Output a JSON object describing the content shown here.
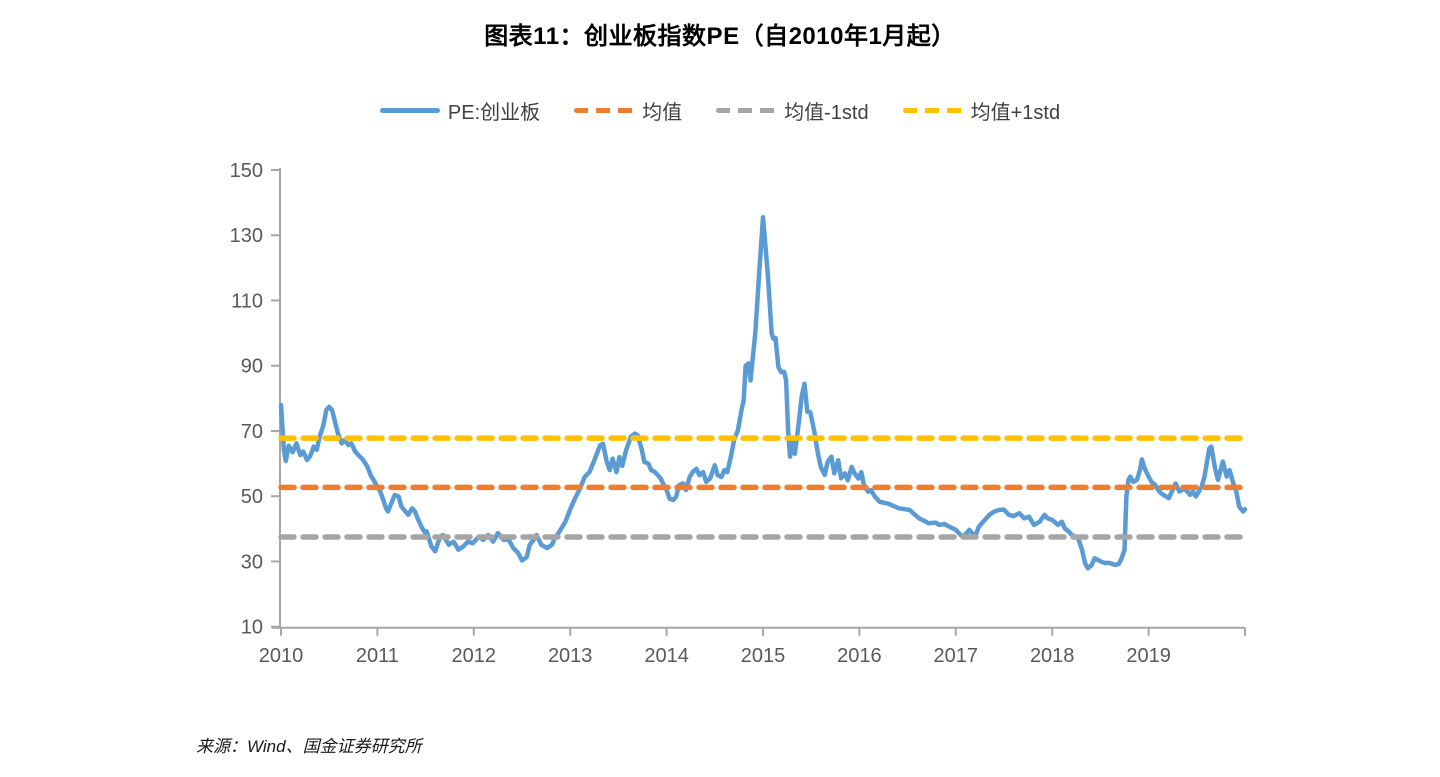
{
  "header": {
    "title": "图表11：创业板指数PE（自2010年1月起）"
  },
  "source": {
    "text": "来源：Wind、国金证券研究所"
  },
  "colors": {
    "pe_blue": "#5B9BD5",
    "mean_orange": "#ED7D31",
    "minus_std_gray": "#A5A5A5",
    "plus_std_yellow": "#FFC000",
    "axis_gray": "#A6A6A6",
    "tick_label_gray": "#595959"
  },
  "chart_data": {
    "type": "line",
    "title": "图表11：创业板指数PE（自2010年1月起）",
    "xlabel": "",
    "ylabel": "",
    "x_ticks": [
      2010,
      2011,
      2012,
      2013,
      2014,
      2015,
      2016,
      2017,
      2018,
      2019
    ],
    "y_ticks": [
      10,
      30,
      50,
      70,
      90,
      110,
      130,
      150
    ],
    "x_range": [
      2010,
      2020
    ],
    "y_range": [
      10,
      150
    ],
    "grid": false,
    "legend_position": "top",
    "series": [
      {
        "name": "PE:创业板",
        "type": "line",
        "style": "solid",
        "color": "#5B9BD5",
        "points": [
          [
            2010.0,
            78
          ],
          [
            2010.03,
            64
          ],
          [
            2010.05,
            60.8
          ],
          [
            2010.08,
            65.5
          ],
          [
            2010.12,
            63.5
          ],
          [
            2010.16,
            66.2
          ],
          [
            2010.2,
            62.6
          ],
          [
            2010.23,
            63.7
          ],
          [
            2010.27,
            61.1
          ],
          [
            2010.3,
            62.1
          ],
          [
            2010.34,
            65.2
          ],
          [
            2010.37,
            64.2
          ],
          [
            2010.4,
            68.2
          ],
          [
            2010.44,
            71.8
          ],
          [
            2010.47,
            76.4
          ],
          [
            2010.5,
            77.4
          ],
          [
            2010.53,
            76.4
          ],
          [
            2010.56,
            72.8
          ],
          [
            2010.59,
            69.3
          ],
          [
            2010.63,
            66.2
          ],
          [
            2010.66,
            67.2
          ],
          [
            2010.7,
            65.7
          ],
          [
            2010.73,
            66.2
          ],
          [
            2010.77,
            63.7
          ],
          [
            2010.8,
            62.7
          ],
          [
            2010.84,
            61.5
          ],
          [
            2010.87,
            60.3
          ],
          [
            2010.9,
            58.8
          ],
          [
            2010.93,
            56.4
          ],
          [
            2010.96,
            55.0
          ],
          [
            2010.99,
            53.4
          ],
          [
            2011.03,
            51.4
          ],
          [
            2011.06,
            48.9
          ],
          [
            2011.09,
            46.3
          ],
          [
            2011.11,
            45.3
          ],
          [
            2011.15,
            48.3
          ],
          [
            2011.18,
            50.4
          ],
          [
            2011.22,
            49.9
          ],
          [
            2011.25,
            46.8
          ],
          [
            2011.29,
            45.3
          ],
          [
            2011.32,
            44.3
          ],
          [
            2011.36,
            46.3
          ],
          [
            2011.39,
            45.3
          ],
          [
            2011.42,
            43.0
          ],
          [
            2011.46,
            40.5
          ],
          [
            2011.49,
            39.0
          ],
          [
            2011.51,
            39.2
          ],
          [
            2011.56,
            34.6
          ],
          [
            2011.6,
            33.1
          ],
          [
            2011.65,
            37.6
          ],
          [
            2011.68,
            38.1
          ],
          [
            2011.74,
            35.1
          ],
          [
            2011.79,
            36.1
          ],
          [
            2011.84,
            33.6
          ],
          [
            2011.89,
            34.6
          ],
          [
            2011.94,
            36.1
          ],
          [
            2011.99,
            35.6
          ],
          [
            2012.05,
            37.6
          ],
          [
            2012.1,
            36.6
          ],
          [
            2012.15,
            38.1
          ],
          [
            2012.2,
            36.1
          ],
          [
            2012.25,
            38.7
          ],
          [
            2012.31,
            36.6
          ],
          [
            2012.36,
            36.8
          ],
          [
            2012.41,
            34.1
          ],
          [
            2012.46,
            32.6
          ],
          [
            2012.5,
            30.3
          ],
          [
            2012.55,
            31.4
          ],
          [
            2012.58,
            35.1
          ],
          [
            2012.62,
            36.6
          ],
          [
            2012.65,
            38.1
          ],
          [
            2012.7,
            35.1
          ],
          [
            2012.76,
            34.1
          ],
          [
            2012.81,
            35.1
          ],
          [
            2012.84,
            37.1
          ],
          [
            2012.89,
            39.2
          ],
          [
            2012.95,
            42.2
          ],
          [
            2013.0,
            46.0
          ],
          [
            2013.05,
            49.3
          ],
          [
            2013.1,
            52.2
          ],
          [
            2013.15,
            55.9
          ],
          [
            2013.2,
            57.4
          ],
          [
            2013.25,
            61.0
          ],
          [
            2013.31,
            65.6
          ],
          [
            2013.34,
            66.1
          ],
          [
            2013.38,
            60.5
          ],
          [
            2013.41,
            58.0
          ],
          [
            2013.44,
            61.5
          ],
          [
            2013.48,
            57.4
          ],
          [
            2013.51,
            62.0
          ],
          [
            2013.54,
            59.3
          ],
          [
            2013.58,
            64.1
          ],
          [
            2013.63,
            68.2
          ],
          [
            2013.67,
            69.2
          ],
          [
            2013.7,
            68.7
          ],
          [
            2013.74,
            64.6
          ],
          [
            2013.77,
            60.5
          ],
          [
            2013.81,
            60.0
          ],
          [
            2013.84,
            58.0
          ],
          [
            2013.88,
            57.4
          ],
          [
            2013.91,
            56.4
          ],
          [
            2013.94,
            55.4
          ],
          [
            2013.98,
            52.9
          ],
          [
            2014.0,
            51.9
          ],
          [
            2014.03,
            49.3
          ],
          [
            2014.07,
            48.8
          ],
          [
            2014.1,
            49.9
          ],
          [
            2014.13,
            53.4
          ],
          [
            2014.17,
            53.9
          ],
          [
            2014.2,
            51.9
          ],
          [
            2014.24,
            55.9
          ],
          [
            2014.27,
            57.4
          ],
          [
            2014.31,
            58.4
          ],
          [
            2014.34,
            56.4
          ],
          [
            2014.38,
            57.4
          ],
          [
            2014.41,
            54.4
          ],
          [
            2014.45,
            55.4
          ],
          [
            2014.5,
            59.5
          ],
          [
            2014.53,
            56.4
          ],
          [
            2014.57,
            55.9
          ],
          [
            2014.6,
            58.0
          ],
          [
            2014.63,
            57.4
          ],
          [
            2014.67,
            62.6
          ],
          [
            2014.7,
            67.2
          ],
          [
            2014.74,
            70.2
          ],
          [
            2014.78,
            76.9
          ],
          [
            2014.8,
            79.4
          ],
          [
            2014.82,
            90.0
          ],
          [
            2014.85,
            90.7
          ],
          [
            2014.87,
            85.5
          ],
          [
            2014.92,
            100.0
          ],
          [
            2014.96,
            118.0
          ],
          [
            2015.0,
            135.5
          ],
          [
            2015.03,
            125.0
          ],
          [
            2015.05,
            118.1
          ],
          [
            2015.09,
            99.8
          ],
          [
            2015.11,
            98.2
          ],
          [
            2015.13,
            98.5
          ],
          [
            2015.16,
            89.6
          ],
          [
            2015.19,
            88.0
          ],
          [
            2015.22,
            88.1
          ],
          [
            2015.24,
            85.5
          ],
          [
            2015.26,
            70.2
          ],
          [
            2015.28,
            62.1
          ],
          [
            2015.31,
            66.7
          ],
          [
            2015.33,
            63.0
          ],
          [
            2015.37,
            72.3
          ],
          [
            2015.4,
            80.4
          ],
          [
            2015.43,
            84.5
          ],
          [
            2015.46,
            75.9
          ],
          [
            2015.49,
            75.8
          ],
          [
            2015.53,
            70.2
          ],
          [
            2015.57,
            63.1
          ],
          [
            2015.6,
            59.0
          ],
          [
            2015.64,
            56.5
          ],
          [
            2015.67,
            60.5
          ],
          [
            2015.71,
            62.1
          ],
          [
            2015.74,
            57.0
          ],
          [
            2015.78,
            61.0
          ],
          [
            2015.81,
            55.5
          ],
          [
            2015.85,
            57.0
          ],
          [
            2015.88,
            54.9
          ],
          [
            2015.92,
            59.0
          ],
          [
            2015.95,
            57.0
          ],
          [
            2015.99,
            55.4
          ],
          [
            2016.02,
            57.4
          ],
          [
            2016.05,
            53.0
          ],
          [
            2016.09,
            51.4
          ],
          [
            2016.12,
            51.9
          ],
          [
            2016.16,
            49.9
          ],
          [
            2016.21,
            48.3
          ],
          [
            2016.3,
            47.7
          ],
          [
            2016.41,
            46.3
          ],
          [
            2016.52,
            45.8
          ],
          [
            2016.62,
            43.2
          ],
          [
            2016.72,
            41.7
          ],
          [
            2016.79,
            41.9
          ],
          [
            2016.83,
            41.2
          ],
          [
            2016.88,
            41.5
          ],
          [
            2016.93,
            40.7
          ],
          [
            2017.0,
            39.7
          ],
          [
            2017.05,
            38.1
          ],
          [
            2017.08,
            37.6
          ],
          [
            2017.14,
            39.7
          ],
          [
            2017.2,
            37.6
          ],
          [
            2017.24,
            40.7
          ],
          [
            2017.3,
            42.7
          ],
          [
            2017.35,
            44.3
          ],
          [
            2017.4,
            45.3
          ],
          [
            2017.45,
            45.8
          ],
          [
            2017.5,
            45.9
          ],
          [
            2017.55,
            44.3
          ],
          [
            2017.6,
            43.9
          ],
          [
            2017.66,
            44.8
          ],
          [
            2017.71,
            43.2
          ],
          [
            2017.76,
            43.7
          ],
          [
            2017.81,
            41.2
          ],
          [
            2017.87,
            42.2
          ],
          [
            2017.92,
            44.3
          ],
          [
            2017.95,
            43.3
          ],
          [
            2018.0,
            42.7
          ],
          [
            2018.06,
            41.2
          ],
          [
            2018.1,
            42.2
          ],
          [
            2018.13,
            40.2
          ],
          [
            2018.17,
            39.2
          ],
          [
            2018.2,
            38.2
          ],
          [
            2018.24,
            37.6
          ],
          [
            2018.27,
            37.1
          ],
          [
            2018.31,
            33.5
          ],
          [
            2018.34,
            29.5
          ],
          [
            2018.37,
            27.9
          ],
          [
            2018.41,
            28.9
          ],
          [
            2018.44,
            31.0
          ],
          [
            2018.48,
            30.4
          ],
          [
            2018.51,
            29.9
          ],
          [
            2018.55,
            29.5
          ],
          [
            2018.58,
            29.6
          ],
          [
            2018.62,
            29.3
          ],
          [
            2018.65,
            28.9
          ],
          [
            2018.69,
            29.2
          ],
          [
            2018.72,
            31.0
          ],
          [
            2018.75,
            33.5
          ],
          [
            2018.77,
            50.0
          ],
          [
            2018.79,
            55.0
          ],
          [
            2018.81,
            56.0
          ],
          [
            2018.84,
            54.4
          ],
          [
            2018.88,
            55.0
          ],
          [
            2018.91,
            58.0
          ],
          [
            2018.93,
            61.3
          ],
          [
            2018.96,
            58.5
          ],
          [
            2019.0,
            56.0
          ],
          [
            2019.03,
            54.4
          ],
          [
            2019.07,
            53.4
          ],
          [
            2019.1,
            51.9
          ],
          [
            2019.13,
            50.9
          ],
          [
            2019.16,
            50.3
          ],
          [
            2019.21,
            49.4
          ],
          [
            2019.25,
            52.0
          ],
          [
            2019.28,
            53.9
          ],
          [
            2019.32,
            51.4
          ],
          [
            2019.37,
            52.4
          ],
          [
            2019.43,
            50.4
          ],
          [
            2019.46,
            51.4
          ],
          [
            2019.49,
            49.9
          ],
          [
            2019.55,
            52.9
          ],
          [
            2019.58,
            56.0
          ],
          [
            2019.63,
            64.7
          ],
          [
            2019.65,
            65.2
          ],
          [
            2019.69,
            58.5
          ],
          [
            2019.72,
            55.0
          ],
          [
            2019.77,
            60.6
          ],
          [
            2019.81,
            56.0
          ],
          [
            2019.84,
            58.0
          ],
          [
            2019.88,
            53.9
          ],
          [
            2019.91,
            51.4
          ],
          [
            2019.94,
            46.8
          ],
          [
            2019.98,
            45.3
          ],
          [
            2020.0,
            46.0
          ]
        ]
      },
      {
        "name": "均值",
        "type": "hline",
        "style": "dashed",
        "color": "#ED7D31",
        "value": 52.7
      },
      {
        "name": "均值-1std",
        "type": "hline",
        "style": "dashed",
        "color": "#A5A5A5",
        "value": 37.5
      },
      {
        "name": "均值+1std",
        "type": "hline",
        "style": "dashed",
        "color": "#FFC000",
        "value": 67.8
      }
    ]
  }
}
